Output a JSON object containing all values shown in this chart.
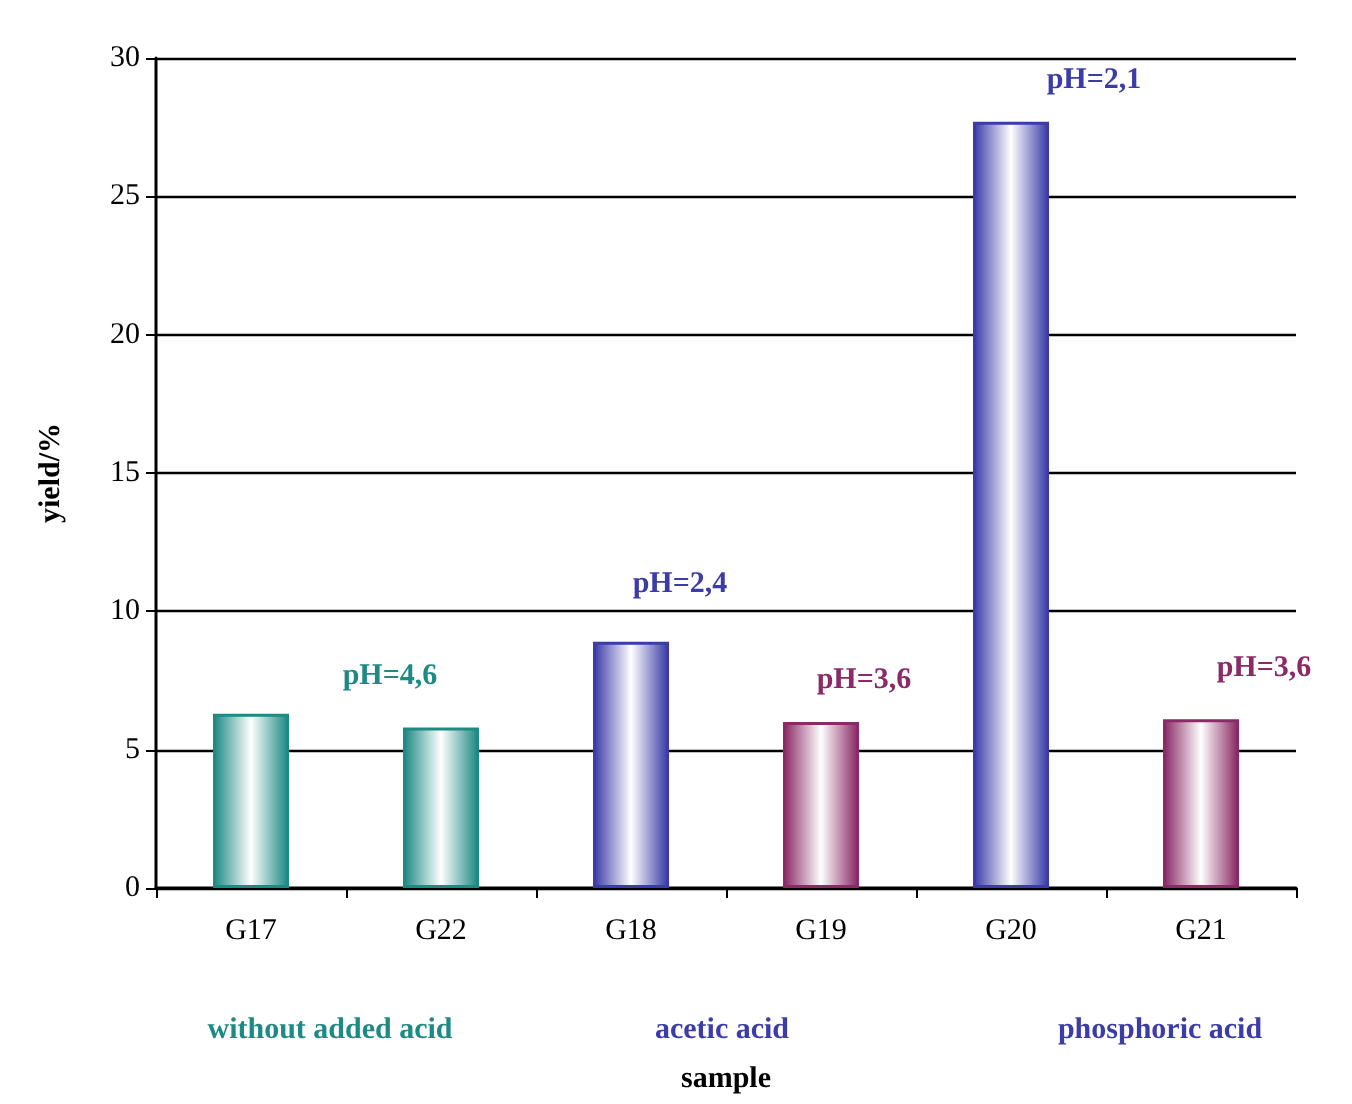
{
  "chart_data": {
    "type": "bar",
    "xlabel": "sample",
    "ylabel": "yield/%",
    "categories": [
      "G17",
      "G22",
      "G18",
      "G19",
      "G20",
      "G21"
    ],
    "values": [
      6.3,
      5.8,
      8.9,
      6.0,
      27.7,
      6.1
    ],
    "colors": [
      "#1f8a84",
      "#1f8a84",
      "#3c3ca8",
      "#8a2a66",
      "#3c3ca8",
      "#8a2a66"
    ],
    "ylim": [
      0,
      30
    ],
    "yticks": [
      0,
      5,
      10,
      15,
      20,
      25,
      30
    ],
    "grid": "y",
    "annotations": [
      "pH=4,6",
      "pH=2,4",
      "pH=3,6",
      "pH=2,1",
      "pH=3,6",
      "without added acid",
      "acetic acid",
      "phosphoric acid"
    ]
  }
}
